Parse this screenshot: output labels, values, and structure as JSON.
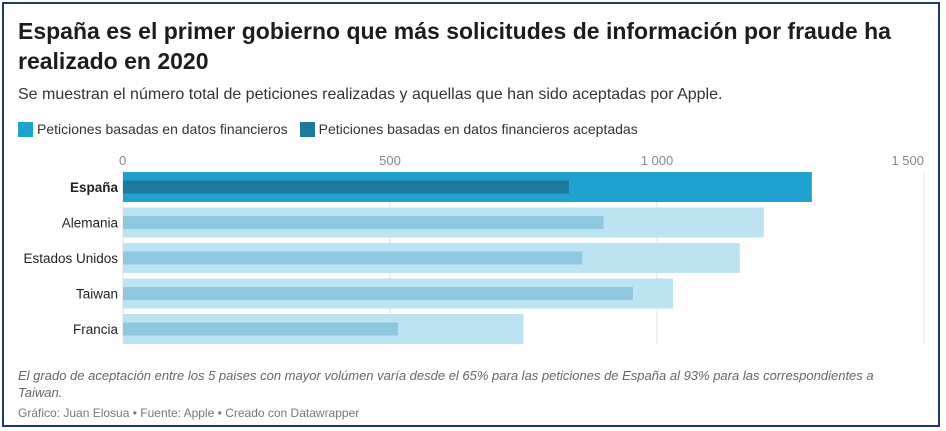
{
  "header": {
    "title": "España es el primer gobierno que más solicitudes de información por fraude ha realizado en 2020",
    "subtitle": "Se muestran el número total de peticiones realizadas y aquellas que han sido aceptadas por Apple."
  },
  "legend": [
    {
      "label": "Peticiones basadas en datos financieros",
      "color": "#1fa2d0"
    },
    {
      "label": "Peticiones basadas en datos financieros aceptadas",
      "color": "#1d7a9a"
    }
  ],
  "chart_data": {
    "type": "bar",
    "orientation": "horizontal",
    "categories": [
      "España",
      "Alemania",
      "Estados Unidos",
      "Taiwan",
      "Francia"
    ],
    "highlight": "España",
    "series": [
      {
        "name": "Peticiones basadas en datos financieros",
        "values": [
          1290,
          1200,
          1155,
          1030,
          750
        ]
      },
      {
        "name": "Peticiones basadas en datos financieros aceptadas",
        "values": [
          835,
          900,
          860,
          955,
          515
        ]
      }
    ],
    "xlim": [
      0,
      1500
    ],
    "xticks": [
      0,
      500,
      1000,
      1500
    ],
    "xtick_labels": [
      "0",
      "500",
      "1 000",
      "1 500"
    ],
    "grid": true,
    "colors": {
      "total_highlight": "#1fa2d0",
      "accepted_highlight": "#1d7a9a",
      "total": "#bbe3f1",
      "accepted": "#8fc8de",
      "grid": "#e2e2e2"
    }
  },
  "footer": {
    "note": "El grado de aceptación entre los 5 paises con mayor volúmen varía desde el 65% para las peticiones de España al 93% para las correspondientes a Taiwan.",
    "credit": "Gráfico: Juan Elosua • Fuente: Apple • Creado con Datawrapper"
  }
}
